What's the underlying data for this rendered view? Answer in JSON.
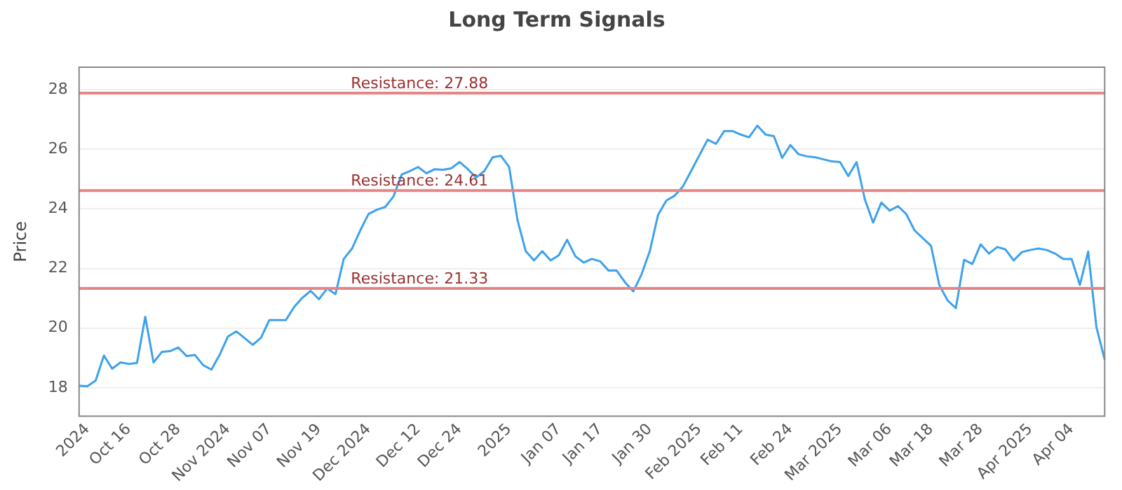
{
  "chart_data": {
    "type": "line",
    "title": "Long Term Signals",
    "ylabel": "Price",
    "categories": [
      null,
      "2024",
      null,
      null,
      null,
      null,
      "Oct 16",
      null,
      null,
      null,
      null,
      null,
      "Oct 28",
      null,
      null,
      null,
      null,
      null,
      "Nov 2024",
      null,
      null,
      null,
      null,
      "Nov 07",
      null,
      null,
      null,
      null,
      null,
      "Nov 19",
      null,
      null,
      null,
      null,
      null,
      "Dec 2024",
      null,
      null,
      null,
      null,
      null,
      "Dec 12",
      null,
      null,
      null,
      null,
      "Dec 24",
      null,
      null,
      null,
      null,
      null,
      "2025",
      null,
      null,
      null,
      null,
      null,
      "Jan 07",
      null,
      null,
      null,
      null,
      "Jan 17",
      null,
      null,
      null,
      null,
      null,
      "Jan 30",
      null,
      null,
      null,
      null,
      null,
      "Feb 2025",
      null,
      null,
      null,
      null,
      "Feb 11",
      null,
      null,
      null,
      null,
      null,
      "Feb 24",
      null,
      null,
      null,
      null,
      null,
      "Mar 2025",
      null,
      null,
      null,
      null,
      null,
      "Mar 06",
      null,
      null,
      null,
      null,
      "Mar 18",
      null,
      null,
      null,
      null,
      null,
      "Mar 28",
      null,
      null,
      null,
      null,
      null,
      "Apr 2025",
      null,
      null,
      null,
      null,
      "Apr 04",
      null,
      null,
      null,
      null
    ],
    "series": [
      {
        "color": "#3ea1ec",
        "values": [
          18.07,
          18.05,
          18.24,
          19.08,
          18.64,
          18.85,
          18.8,
          18.83,
          20.38,
          18.85,
          19.2,
          19.23,
          19.35,
          19.06,
          19.1,
          18.76,
          18.61,
          19.11,
          19.72,
          19.89,
          19.67,
          19.44,
          19.68,
          20.27,
          20.27,
          20.27,
          20.71,
          21.02,
          21.25,
          20.97,
          21.33,
          21.14,
          22.32,
          22.67,
          23.28,
          23.83,
          23.97,
          24.06,
          24.41,
          25.15,
          25.27,
          25.4,
          25.19,
          25.33,
          25.31,
          25.36,
          25.57,
          25.33,
          25.05,
          25.27,
          25.73,
          25.78,
          25.4,
          23.63,
          22.58,
          22.27,
          22.58,
          22.27,
          22.44,
          22.96,
          22.41,
          22.2,
          22.32,
          22.24,
          21.93,
          21.93,
          21.54,
          21.23,
          21.8,
          22.58,
          23.8,
          24.28,
          24.44,
          24.75,
          25.27,
          25.8,
          26.32,
          26.18,
          26.61,
          26.61,
          26.49,
          26.4,
          26.79,
          26.49,
          26.44,
          25.71,
          26.14,
          25.83,
          25.76,
          25.73,
          25.66,
          25.59,
          25.57,
          25.1,
          25.57,
          24.32,
          23.54,
          24.21,
          23.94,
          24.09,
          23.83,
          23.28,
          23.02,
          22.76,
          21.45,
          20.93,
          20.67,
          22.29,
          22.15,
          22.81,
          22.5,
          22.72,
          22.64,
          22.27,
          22.55,
          22.62,
          22.67,
          22.62,
          22.5,
          22.32,
          22.32,
          21.45,
          22.57,
          20.03,
          18.94
        ]
      }
    ],
    "ylim": [
      17.05,
      28.75
    ],
    "yticks": [
      18,
      20,
      22,
      24,
      26,
      28
    ],
    "grid": "y",
    "legend": false,
    "marker": "none",
    "line_style": "solid",
    "ref_lines": [
      {
        "axis": "y",
        "value": 27.88,
        "label": "Resistance: 27.88",
        "color": "#e58585"
      },
      {
        "axis": "y",
        "value": 24.61,
        "label": "Resistance: 24.61",
        "color": "#e58585"
      },
      {
        "axis": "y",
        "value": 21.33,
        "label": "Resistance: 21.33",
        "color": "#e58585"
      }
    ]
  }
}
